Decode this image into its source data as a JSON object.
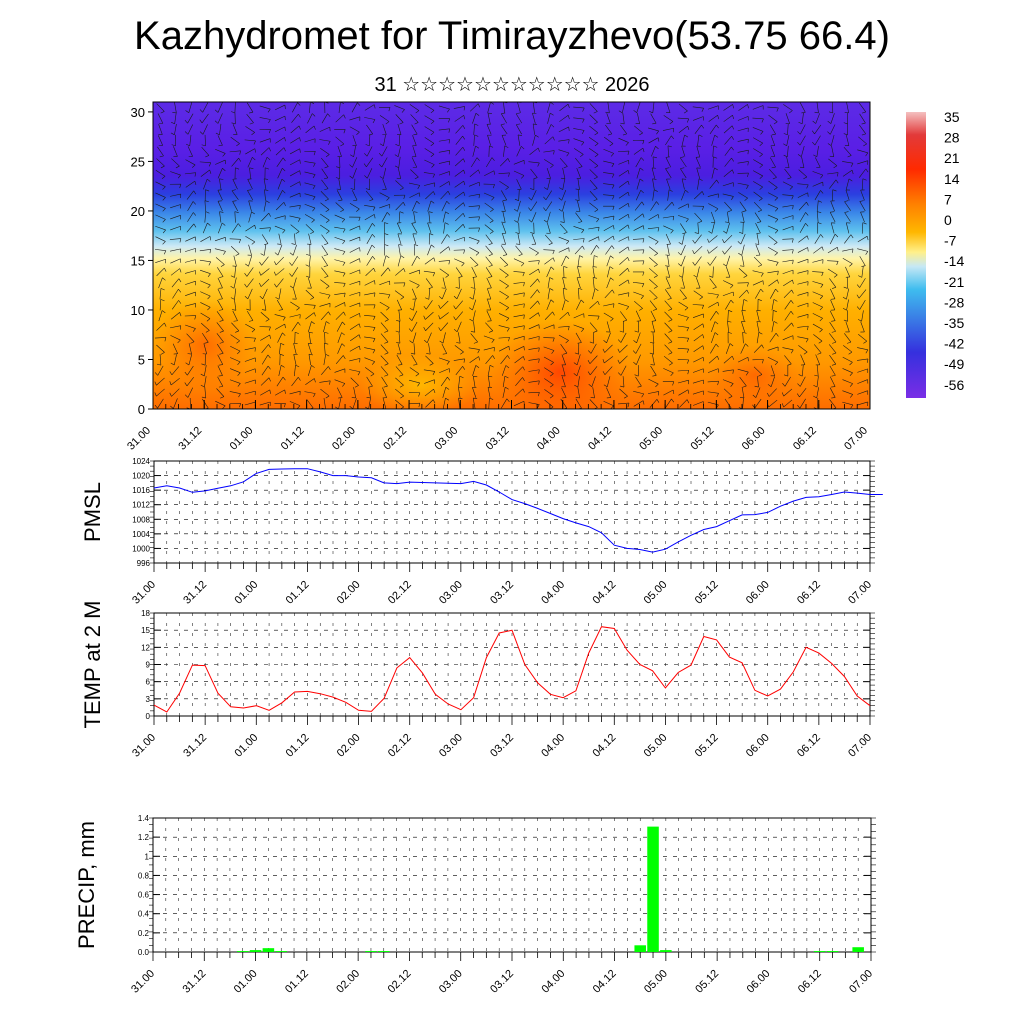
{
  "title": "Kazhydromet for Timirayzhevo(53.75 66.4)",
  "subtitle": "31 ☆☆☆☆☆☆☆☆☆☆☆ 2026",
  "time_labels": [
    "31.00",
    "31.12",
    "01.00",
    "01.12",
    "02.00",
    "02.12",
    "03.00",
    "03.12",
    "04.00",
    "04.12",
    "05.00",
    "05.12",
    "06.00",
    "06.12",
    "07.00"
  ],
  "colorbar": {
    "labels": [
      "35",
      "28",
      "21",
      "14",
      "7",
      "0",
      "-7",
      "-14",
      "-21",
      "-28",
      "-35",
      "-42",
      "-49",
      "-56"
    ]
  },
  "chart_data": [
    {
      "type": "heatmap",
      "name": "upper-air-temperature-wind",
      "title": "",
      "ylabel": "",
      "y_ticks": [
        0,
        5,
        10,
        15,
        20,
        25,
        30
      ],
      "ylim": [
        0,
        31
      ],
      "x_labels": [
        "31.00",
        "31.12",
        "01.00",
        "01.12",
        "02.00",
        "02.12",
        "03.00",
        "03.12",
        "04.00",
        "04.12",
        "05.00",
        "05.12",
        "06.00",
        "06.12",
        "07.00"
      ],
      "colorbar_range": [
        -56,
        35
      ],
      "temperature_profile": {
        "levels": [
          0,
          5,
          10,
          14,
          16,
          18,
          20,
          22,
          24,
          27,
          31
        ],
        "values": [
          14,
          12,
          8,
          2,
          -8,
          -22,
          -38,
          -52,
          -58,
          -55,
          -52
        ]
      }
    },
    {
      "type": "line",
      "name": "pmsl",
      "ylabel": "PMSL",
      "ylim": [
        996,
        1024
      ],
      "y_ticks": [
        996,
        1000,
        1004,
        1008,
        1012,
        1016,
        1020,
        1024
      ],
      "x_labels": [
        "31.00",
        "31.12",
        "01.00",
        "01.12",
        "02.00",
        "02.12",
        "03.00",
        "03.12",
        "04.00",
        "04.12",
        "05.00",
        "05.12",
        "06.00",
        "06.12",
        "07.00"
      ],
      "series": [
        {
          "name": "PMSL",
          "color": "#0000ff",
          "values": [
            1016.6,
            1017.2,
            1016.6,
            1015.4,
            1015.8,
            1016.5,
            1017.2,
            1018.3,
            1020.6,
            1021.7,
            1021.8,
            1021.9,
            1021.9,
            1021.0,
            1020.0,
            1020.0,
            1019.6,
            1019.4,
            1018.0,
            1017.8,
            1018.2,
            1018.1,
            1018.0,
            1017.9,
            1017.8,
            1018.4,
            1017.4,
            1015.5,
            1013.4,
            1012.3,
            1011.0,
            1009.6,
            1008.2,
            1007.0,
            1006.0,
            1004.3,
            1000.9,
            1000.0,
            999.7,
            999.0,
            999.8,
            1001.8,
            1003.6,
            1005.2,
            1006.0,
            1007.6,
            1009.2,
            1009.3,
            1009.9,
            1011.6,
            1013.0,
            1014.0,
            1014.2,
            1014.8,
            1015.5,
            1015.2,
            1014.8,
            1014.8
          ]
        }
      ]
    },
    {
      "type": "line",
      "name": "temp-2m",
      "ylabel": "TEMP at 2 M",
      "ylim": [
        0,
        18
      ],
      "y_ticks": [
        0,
        3,
        6,
        9,
        12,
        15,
        18
      ],
      "x_labels": [
        "31.00",
        "31.12",
        "01.00",
        "01.12",
        "02.00",
        "02.12",
        "03.00",
        "03.12",
        "04.00",
        "04.12",
        "05.00",
        "05.12",
        "06.00",
        "06.12",
        "07.00"
      ],
      "series": [
        {
          "name": "TEMP at 2 M",
          "color": "#ff0000",
          "values": [
            1.9,
            0.7,
            4.0,
            8.9,
            8.8,
            4.0,
            1.6,
            1.4,
            1.8,
            1.0,
            2.3,
            4.2,
            4.3,
            3.9,
            3.3,
            2.4,
            1.0,
            0.8,
            3.1,
            8.4,
            10.2,
            7.5,
            3.8,
            2.1,
            1.1,
            3.2,
            10.2,
            14.5,
            15.0,
            9.0,
            5.8,
            3.8,
            3.2,
            4.4,
            11.0,
            15.6,
            15.3,
            11.5,
            9.0,
            7.9,
            4.9,
            7.6,
            8.9,
            13.9,
            13.3,
            10.3,
            9.3,
            4.5,
            3.5,
            4.7,
            7.7,
            12.0,
            11.0,
            9.2,
            6.9,
            3.5,
            1.8
          ]
        }
      ]
    },
    {
      "type": "bar",
      "name": "precip",
      "ylabel": "PRECIP, mm",
      "ylim": [
        0,
        1.4
      ],
      "y_ticks": [
        "0.0",
        "0.2",
        "0.4",
        "0.6",
        "0.8",
        "1",
        "1.2",
        "1.4"
      ],
      "x_labels": [
        "31.00",
        "31.12",
        "01.00",
        "01.12",
        "02.00",
        "02.12",
        "03.00",
        "03.12",
        "04.00",
        "04.12",
        "05.00",
        "05.12",
        "06.00",
        "06.12",
        "07.00"
      ],
      "bar_color": "#00ff00",
      "bars": [
        {
          "t": 7,
          "value": 0.01
        },
        {
          "t": 8,
          "value": 0.02
        },
        {
          "t": 9,
          "value": 0.04
        },
        {
          "t": 10,
          "value": 0.01
        },
        {
          "t": 17,
          "value": 0.01
        },
        {
          "t": 18,
          "value": 0.01
        },
        {
          "t": 38,
          "value": 0.07
        },
        {
          "t": 39,
          "value": 1.31
        },
        {
          "t": 40,
          "value": 0.02
        },
        {
          "t": 52,
          "value": 0.01
        },
        {
          "t": 53,
          "value": 0.01
        },
        {
          "t": 55,
          "value": 0.05
        }
      ]
    }
  ]
}
